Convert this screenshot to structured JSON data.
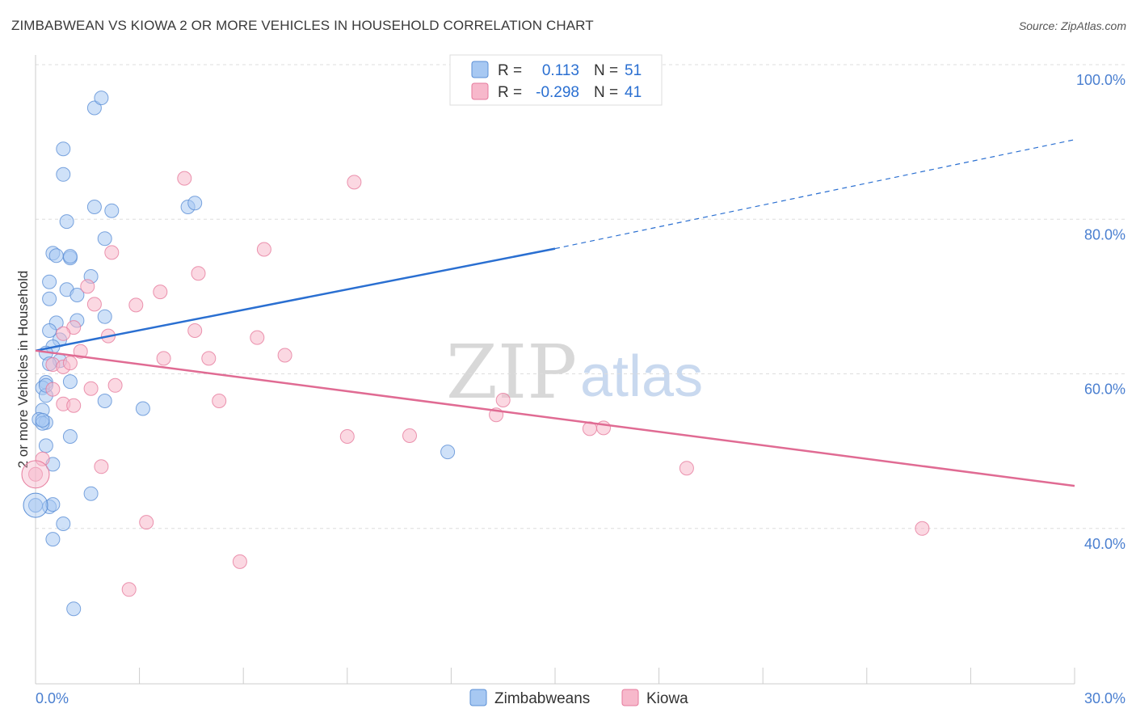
{
  "chart_data": {
    "type": "scatter",
    "title": "ZIMBABWEAN VS KIOWA 2 OR MORE VEHICLES IN HOUSEHOLD CORRELATION CHART",
    "source": "Source: ZipAtlas.com",
    "xlabel": "",
    "ylabel": "2 or more Vehicles in Household",
    "xlim": [
      0,
      30
    ],
    "ylim": [
      20,
      100
    ],
    "x_tick_labels": [
      "0.0%",
      "30.0%"
    ],
    "y_ticks": [
      40,
      60,
      80,
      100
    ],
    "y_tick_labels": [
      "40.0%",
      "60.0%",
      "80.0%",
      "100.0%"
    ],
    "watermark": {
      "zip": "ZIP",
      "atlas": "atlas"
    },
    "legend": {
      "r_label": "R =",
      "n_label": "N =",
      "entries": [
        {
          "name": "Zimbabweans",
          "r": "0.113",
          "n": "51",
          "color": "#a7c8f2",
          "edge": "#5b8fd6"
        },
        {
          "name": "Kiowa",
          "r": "-0.298",
          "n": "41",
          "color": "#f7b8cb",
          "edge": "#e67a9c"
        }
      ]
    },
    "series": [
      {
        "name": "Zimbabweans",
        "color": "#a7c8f2",
        "edge": "#5b8fd6",
        "trend": {
          "x0": 0,
          "y0": 63.0,
          "x1": 15.0,
          "y1": 76.2,
          "dash_x1": 30.0,
          "dash_y1": 90.3,
          "color": "#2a6fd1"
        },
        "points": [
          [
            1.7,
            94.4
          ],
          [
            1.9,
            95.7
          ],
          [
            0.8,
            89.1
          ],
          [
            0.8,
            85.8
          ],
          [
            1.7,
            81.6
          ],
          [
            2.2,
            81.1
          ],
          [
            4.4,
            81.6
          ],
          [
            4.6,
            82.1
          ],
          [
            0.9,
            79.7
          ],
          [
            2.0,
            77.5
          ],
          [
            0.5,
            75.6
          ],
          [
            0.6,
            75.3
          ],
          [
            1.0,
            75.0
          ],
          [
            1.0,
            75.2
          ],
          [
            1.6,
            72.6
          ],
          [
            0.4,
            71.9
          ],
          [
            0.9,
            70.9
          ],
          [
            1.2,
            70.2
          ],
          [
            0.4,
            69.7
          ],
          [
            1.2,
            66.9
          ],
          [
            2.0,
            67.4
          ],
          [
            0.6,
            66.6
          ],
          [
            0.4,
            65.6
          ],
          [
            0.7,
            64.4
          ],
          [
            0.5,
            63.5
          ],
          [
            0.3,
            62.7
          ],
          [
            0.7,
            61.7
          ],
          [
            0.4,
            61.3
          ],
          [
            0.3,
            58.9
          ],
          [
            1.0,
            59.0
          ],
          [
            0.2,
            58.2
          ],
          [
            0.3,
            57.2
          ],
          [
            2.0,
            56.5
          ],
          [
            3.1,
            55.5
          ],
          [
            0.2,
            55.3
          ],
          [
            0.1,
            54.1
          ],
          [
            0.3,
            53.7
          ],
          [
            0.2,
            53.6
          ],
          [
            1.0,
            51.9
          ],
          [
            0.3,
            50.7
          ],
          [
            0.5,
            48.3
          ],
          [
            11.9,
            49.9
          ],
          [
            1.6,
            44.5
          ],
          [
            0.0,
            43.0
          ],
          [
            0.4,
            42.8
          ],
          [
            0.5,
            43.1
          ],
          [
            0.8,
            40.6
          ],
          [
            0.5,
            38.6
          ],
          [
            1.1,
            29.6
          ],
          [
            0.3,
            58.5
          ],
          [
            0.2,
            54.0
          ]
        ]
      },
      {
        "name": "Kiowa",
        "color": "#f7b8cb",
        "edge": "#e67a9c",
        "trend": {
          "x0": 0,
          "y0": 63.0,
          "x1": 30.0,
          "y1": 45.5,
          "color": "#e06b93"
        },
        "points": [
          [
            4.3,
            85.3
          ],
          [
            9.2,
            84.8
          ],
          [
            2.2,
            75.7
          ],
          [
            6.6,
            76.1
          ],
          [
            4.7,
            73.0
          ],
          [
            1.5,
            71.3
          ],
          [
            3.6,
            70.6
          ],
          [
            1.7,
            69.0
          ],
          [
            2.9,
            68.9
          ],
          [
            1.1,
            66.0
          ],
          [
            4.6,
            65.6
          ],
          [
            0.8,
            65.2
          ],
          [
            2.1,
            64.9
          ],
          [
            6.4,
            64.7
          ],
          [
            1.3,
            62.9
          ],
          [
            3.7,
            62.0
          ],
          [
            5.0,
            62.0
          ],
          [
            7.2,
            62.4
          ],
          [
            0.5,
            61.2
          ],
          [
            0.8,
            60.9
          ],
          [
            0.5,
            58.0
          ],
          [
            1.6,
            58.1
          ],
          [
            2.3,
            58.5
          ],
          [
            0.8,
            56.1
          ],
          [
            1.1,
            55.9
          ],
          [
            5.3,
            56.5
          ],
          [
            13.5,
            56.6
          ],
          [
            13.3,
            54.7
          ],
          [
            9.0,
            51.9
          ],
          [
            10.8,
            52.0
          ],
          [
            16.0,
            52.9
          ],
          [
            16.4,
            53.0
          ],
          [
            0.0,
            47.0
          ],
          [
            1.9,
            48.0
          ],
          [
            18.8,
            47.8
          ],
          [
            3.2,
            40.8
          ],
          [
            25.6,
            40.0
          ],
          [
            5.9,
            35.7
          ],
          [
            2.7,
            32.1
          ],
          [
            0.2,
            49.0
          ],
          [
            1.0,
            61.4
          ]
        ]
      }
    ]
  }
}
